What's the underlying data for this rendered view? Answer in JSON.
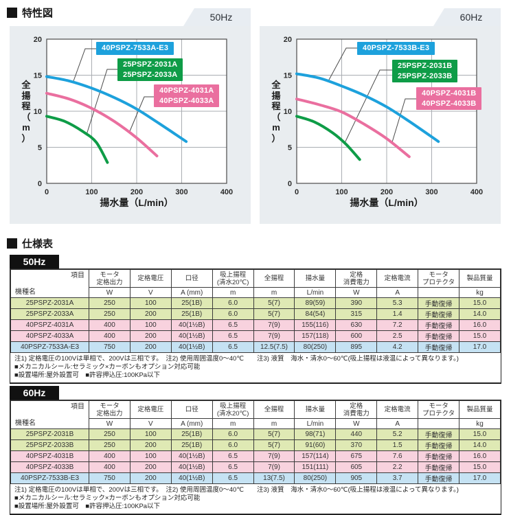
{
  "page": {
    "section1_title": "特性図",
    "section2_title": "仕様表"
  },
  "colors": {
    "panel_bg": "#e9edf0",
    "tab_bg": "#e8edf2",
    "plot_bg": "#ffffff",
    "grid_line": "#a9adb2",
    "plot_border": "#4a4a4a",
    "curve_blue": "#1da1dc",
    "curve_green": "#0e9c47",
    "curve_pink": "#ea6f9f",
    "row_green": "#dfe9b4",
    "row_pink": "#f8d2de",
    "row_blue": "#c5e2f3",
    "freq_label_bg": "#111111"
  },
  "chart_data": [
    {
      "type": "line",
      "title": "50Hz",
      "xlabel": "揚水量（L/min）",
      "ylabel": "全揚程(m)",
      "ylabel_chars": [
        "全",
        "揚",
        "程",
        "（",
        "m",
        "）"
      ],
      "xlim": [
        0,
        400
      ],
      "ylim": [
        0,
        20
      ],
      "xticks": [
        0,
        100,
        200,
        300,
        400
      ],
      "yticks": [
        0,
        5,
        10,
        15,
        20
      ],
      "grid": true,
      "series": [
        {
          "name": "40PSPZ-7533A-E3",
          "label_lines": [
            "40PSPZ-7533A-E3"
          ],
          "color": "#1da1dc",
          "points": [
            [
              0,
              14.8
            ],
            [
              50,
              14.2
            ],
            [
              100,
              13.2
            ],
            [
              150,
              11.9
            ],
            [
              200,
              10.3
            ],
            [
              250,
              8.3
            ],
            [
              310,
              5.8
            ]
          ]
        },
        {
          "name": "25PSPZ-2031A / 25PSPZ-2033A",
          "label_lines": [
            "25PSPZ-2031A",
            "25PSPZ-2033A"
          ],
          "color": "#0e9c47",
          "points": [
            [
              0,
              9.3
            ],
            [
              40,
              8.6
            ],
            [
              80,
              7.2
            ],
            [
              110,
              5.7
            ],
            [
              135,
              2.9
            ]
          ]
        },
        {
          "name": "40PSPZ-4031A / 40PSPZ-4033A",
          "label_lines": [
            "40PSPZ-4031A",
            "40PSPZ-4033A"
          ],
          "color": "#ea6f9f",
          "points": [
            [
              0,
              12.5
            ],
            [
              50,
              11.7
            ],
            [
              100,
              10.4
            ],
            [
              150,
              8.6
            ],
            [
              200,
              6.3
            ],
            [
              245,
              3.8
            ]
          ]
        }
      ]
    },
    {
      "type": "line",
      "title": "60Hz",
      "xlabel": "揚水量（L/min）",
      "ylabel": "全揚程(m)",
      "ylabel_chars": [
        "全",
        "揚",
        "程",
        "（",
        "m",
        "）"
      ],
      "xlim": [
        0,
        400
      ],
      "ylim": [
        0,
        20
      ],
      "xticks": [
        0,
        100,
        200,
        300,
        400
      ],
      "yticks": [
        0,
        5,
        10,
        15,
        20
      ],
      "grid": true,
      "series": [
        {
          "name": "40PSPZ-7533B-E3",
          "label_lines": [
            "40PSPZ-7533B-E3"
          ],
          "color": "#1da1dc",
          "points": [
            [
              0,
              15.2
            ],
            [
              50,
              14.6
            ],
            [
              100,
              13.5
            ],
            [
              150,
              12.2
            ],
            [
              200,
              10.6
            ],
            [
              250,
              8.6
            ],
            [
              315,
              5.8
            ]
          ]
        },
        {
          "name": "25PSPZ-2031B / 25PSPZ-2033B",
          "label_lines": [
            "25PSPZ-2031B",
            "25PSPZ-2033B"
          ],
          "color": "#0e9c47",
          "points": [
            [
              0,
              9.3
            ],
            [
              40,
              8.5
            ],
            [
              80,
              7.0
            ],
            [
              110,
              5.4
            ],
            [
              140,
              3.3
            ]
          ]
        },
        {
          "name": "40PSPZ-4031B / 40PSPZ-4033B",
          "label_lines": [
            "40PSPZ-4031B",
            "40PSPZ-4033B"
          ],
          "color": "#ea6f9f",
          "points": [
            [
              0,
              11.7
            ],
            [
              50,
              10.9
            ],
            [
              100,
              9.9
            ],
            [
              150,
              8.2
            ],
            [
              200,
              6.2
            ],
            [
              250,
              3.7
            ]
          ]
        }
      ]
    }
  ],
  "spec_table_corner": {
    "top": "項目",
    "bottom": "機種名"
  },
  "spec_table_columns": [
    {
      "label": "モータ\n定格出力",
      "unit": "W"
    },
    {
      "label": "定格電圧",
      "unit": "V"
    },
    {
      "label": "口径",
      "unit": "A (mm)"
    },
    {
      "label": "吸上揚程\n(清水20℃)",
      "unit": "m"
    },
    {
      "label": "全揚程",
      "unit": "m"
    },
    {
      "label": "揚水量",
      "unit": "L/min"
    },
    {
      "label": "定格\n消費電力",
      "unit": "W"
    },
    {
      "label": "定格電流",
      "unit": "A"
    },
    {
      "label": "モータ\nプロテクタ",
      "unit": ""
    },
    {
      "label": "製品質量",
      "unit": "kg"
    }
  ],
  "spec_tables": [
    {
      "label": "50Hz",
      "rows": [
        {
          "model": "25PSPZ-2031A",
          "tone": "green",
          "values": [
            "250",
            "100",
            "25(1B)",
            "6.0",
            "5(7)",
            "89(59)",
            "390",
            "5.3",
            "手動復帰",
            "15.0"
          ]
        },
        {
          "model": "25PSPZ-2033A",
          "tone": "green",
          "values": [
            "250",
            "200",
            "25(1B)",
            "6.0",
            "5(7)",
            "84(54)",
            "315",
            "1.4",
            "手動復帰",
            "14.0"
          ]
        },
        {
          "model": "40PSPZ-4031A",
          "tone": "pink",
          "values": [
            "400",
            "100",
            "40(1½B)",
            "6.5",
            "7(9)",
            "155(116)",
            "630",
            "7.2",
            "手動復帰",
            "16.0"
          ]
        },
        {
          "model": "40PSPZ-4033A",
          "tone": "pink",
          "values": [
            "400",
            "200",
            "40(1½B)",
            "6.5",
            "7(9)",
            "157(118)",
            "600",
            "2.5",
            "手動復帰",
            "15.0"
          ]
        },
        {
          "model": "40PSPZ-7533A-E3",
          "tone": "blue",
          "values": [
            "750",
            "200",
            "40(1½B)",
            "6.5",
            "12.5(7.5)",
            "80(250)",
            "895",
            "4.2",
            "手動復帰",
            "17.0"
          ]
        }
      ]
    },
    {
      "label": "60Hz",
      "rows": [
        {
          "model": "25PSPZ-2031B",
          "tone": "green",
          "values": [
            "250",
            "100",
            "25(1B)",
            "6.0",
            "5(7)",
            "98(71)",
            "440",
            "5.2",
            "手動復帰",
            "15.0"
          ]
        },
        {
          "model": "25PSPZ-2033B",
          "tone": "green",
          "values": [
            "250",
            "200",
            "25(1B)",
            "6.0",
            "5(7)",
            "91(60)",
            "370",
            "1.5",
            "手動復帰",
            "14.0"
          ]
        },
        {
          "model": "40PSPZ-4031B",
          "tone": "pink",
          "values": [
            "400",
            "100",
            "40(1½B)",
            "6.5",
            "7(9)",
            "157(114)",
            "675",
            "7.6",
            "手動復帰",
            "16.0"
          ]
        },
        {
          "model": "40PSPZ-4033B",
          "tone": "pink",
          "values": [
            "400",
            "200",
            "40(1½B)",
            "6.5",
            "7(9)",
            "151(111)",
            "605",
            "2.2",
            "手動復帰",
            "15.0"
          ]
        },
        {
          "model": "40PSPZ-7533B-E3",
          "tone": "blue",
          "values": [
            "750",
            "200",
            "40(1½B)",
            "6.5",
            "13(7.5)",
            "80(250)",
            "905",
            "3.7",
            "手動復帰",
            "17.0"
          ]
        }
      ]
    }
  ],
  "spec_notes": [
    "注1) 定格電圧の100Vは単相で、200Vは三相です。　注2) 使用周囲温度0〜40℃　　注3) 液質　海水・清水0〜60℃(吸上揚程は液温によって異なります。)",
    "■メカニカルシール:セラミック×カーボンもオプション対応可能",
    "■設置場所:屋外設置可　■許容押込圧:100KPa以下"
  ]
}
